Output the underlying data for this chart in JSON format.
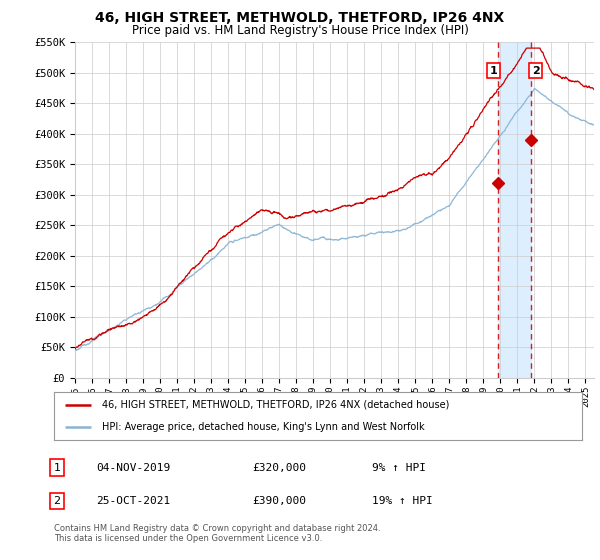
{
  "title": "46, HIGH STREET, METHWOLD, THETFORD, IP26 4NX",
  "subtitle": "Price paid vs. HM Land Registry's House Price Index (HPI)",
  "legend_line1": "46, HIGH STREET, METHWOLD, THETFORD, IP26 4NX (detached house)",
  "legend_line2": "HPI: Average price, detached house, King's Lynn and West Norfolk",
  "table_row1": [
    "1",
    "04-NOV-2019",
    "£320,000",
    "9% ↑ HPI"
  ],
  "table_row2": [
    "2",
    "25-OCT-2021",
    "£390,000",
    "19% ↑ HPI"
  ],
  "footer": "Contains HM Land Registry data © Crown copyright and database right 2024.\nThis data is licensed under the Open Government Licence v3.0.",
  "ylim": [
    0,
    550000
  ],
  "yticks": [
    0,
    50000,
    100000,
    150000,
    200000,
    250000,
    300000,
    350000,
    400000,
    450000,
    500000,
    550000
  ],
  "ytick_labels": [
    "£0",
    "£50K",
    "£100K",
    "£150K",
    "£200K",
    "£250K",
    "£300K",
    "£350K",
    "£400K",
    "£450K",
    "£500K",
    "£550K"
  ],
  "sale1_date_num": 2019.84,
  "sale1_price": 320000,
  "sale2_date_num": 2021.82,
  "sale2_price": 390000,
  "shade_start": 2019.84,
  "shade_end": 2021.82,
  "red_color": "#cc0000",
  "blue_color": "#8ab4d4",
  "shade_color": "#ddeeff",
  "grid_color": "#cccccc",
  "background_color": "#ffffff",
  "marker_color": "#cc0000",
  "xmin": 1995,
  "xmax": 2025.5
}
